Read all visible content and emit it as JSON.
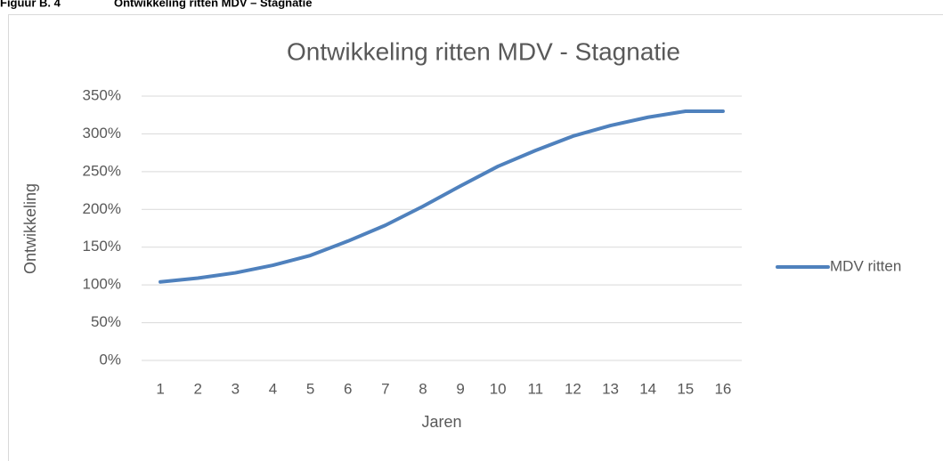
{
  "caption": {
    "label": "Figuur B. 4",
    "title": "Ontwikkeling ritten MDV – Stagnatie"
  },
  "chart_data": {
    "type": "line",
    "title": "Ontwikkeling ritten MDV - Stagnatie",
    "x_label": "Jaren",
    "y_label": "Ontwikkeling",
    "categories": [
      "1",
      "2",
      "3",
      "4",
      "5",
      "6",
      "7",
      "8",
      "9",
      "10",
      "11",
      "12",
      "13",
      "14",
      "15",
      "16"
    ],
    "series": [
      {
        "name": "MDV ritten",
        "color": "#4f81bd",
        "values": [
          104,
          109,
          116,
          126,
          139,
          158,
          179,
          204,
          231,
          257,
          278,
          297,
          311,
          322,
          330,
          330
        ]
      }
    ],
    "ylim": [
      0,
      350
    ],
    "yticks": [
      {
        "value": 0,
        "label": "0%"
      },
      {
        "value": 50,
        "label": "50%"
      },
      {
        "value": 100,
        "label": "100%"
      },
      {
        "value": 150,
        "label": "150%"
      },
      {
        "value": 200,
        "label": "200%"
      },
      {
        "value": 250,
        "label": "250%"
      },
      {
        "value": 300,
        "label": "300%"
      },
      {
        "value": 350,
        "label": "350%"
      }
    ],
    "grid": true,
    "legend": "right"
  }
}
